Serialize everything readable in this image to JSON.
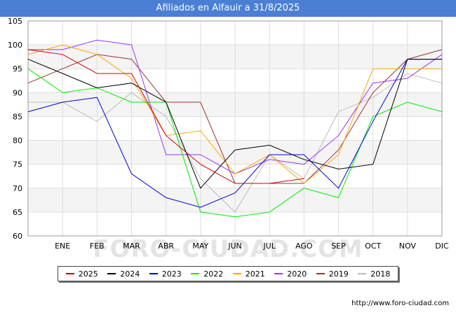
{
  "header": {
    "title": "Afiliados en Alfauir a 31/8/2025"
  },
  "watermark": "FORO-CIUDAD.COM",
  "credit": "http://www.foro-ciudad.com",
  "chart_data": {
    "type": "line",
    "title": "Afiliados en Alfauir a 31/8/2025",
    "xlabel": "",
    "ylabel": "",
    "categories": [
      "",
      "ENE",
      "FEB",
      "MAR",
      "ABR",
      "MAY",
      "JUN",
      "JUL",
      "AGO",
      "SEP",
      "OCT",
      "NOV",
      "DIC"
    ],
    "y_ticks": [
      60,
      65,
      70,
      75,
      80,
      85,
      90,
      95,
      100,
      105
    ],
    "ylim": [
      60,
      105
    ],
    "grid": true,
    "legend_position": "bottom",
    "series": [
      {
        "name": "2025",
        "color": "#cc0000",
        "values": [
          99,
          98,
          94,
          94,
          81,
          75,
          71,
          71,
          72,
          null,
          null,
          null,
          null
        ]
      },
      {
        "name": "2024",
        "color": "#000000",
        "values": [
          97,
          94,
          91,
          92,
          88,
          70,
          78,
          79,
          76,
          74,
          75,
          97,
          97
        ]
      },
      {
        "name": "2023",
        "color": "#0000dd",
        "values": [
          86,
          88,
          89,
          73,
          68,
          66,
          69,
          77,
          77,
          70,
          84,
          97,
          97
        ]
      },
      {
        "name": "2022",
        "color": "#00ee00",
        "values": [
          95,
          90,
          91,
          88,
          88,
          65,
          64,
          65,
          70,
          68,
          85,
          88,
          86
        ]
      },
      {
        "name": "2021",
        "color": "#ffa500",
        "values": [
          98,
          100,
          98,
          93,
          81,
          82,
          73,
          77,
          71,
          77,
          95,
          95,
          95
        ]
      },
      {
        "name": "2020",
        "color": "#9933ff",
        "values": [
          99,
          99,
          101,
          100,
          77,
          77,
          73,
          76,
          75,
          81,
          92,
          93,
          98
        ]
      },
      {
        "name": "2019",
        "color": "#993333",
        "values": [
          92,
          95,
          98,
          97,
          88,
          88,
          71,
          71,
          71,
          78,
          90,
          97,
          99
        ]
      },
      {
        "name": "2018",
        "color": "#bbbbbb",
        "values": [
          88,
          88,
          84,
          90,
          85,
          72,
          65,
          77,
          72,
          86,
          89,
          94,
          92
        ]
      }
    ]
  }
}
